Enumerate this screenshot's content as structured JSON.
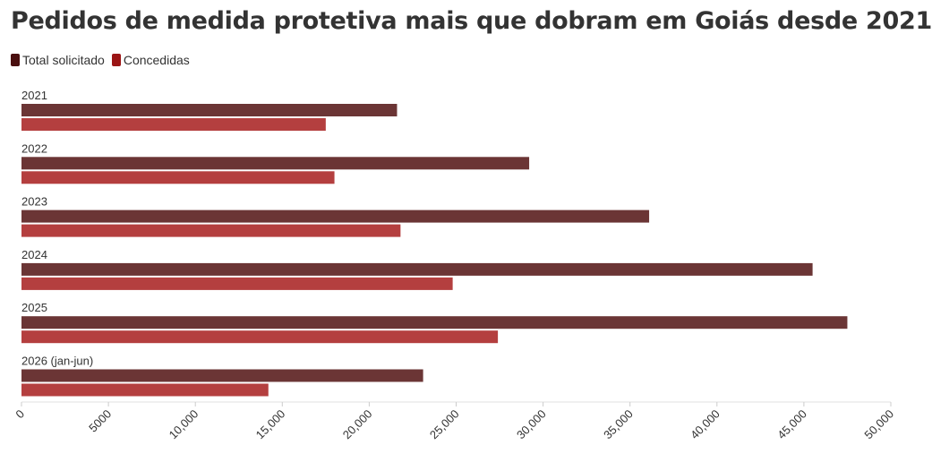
{
  "title": "Pedidos de medida protetiva mais que dobram em Goiás desde 2021",
  "legend": [
    {
      "label": "Total solicitado",
      "color": "#4a0f0f"
    },
    {
      "label": "Concedidas",
      "color": "#9b1515"
    }
  ],
  "chart_data": {
    "type": "bar",
    "orientation": "horizontal",
    "categories": [
      "2021",
      "2022",
      "2023",
      "2024",
      "2025",
      "2026 (jan-jun)"
    ],
    "series": [
      {
        "name": "Total solicitado",
        "color": "#6b3535",
        "values": [
          21600,
          29200,
          36100,
          45500,
          47500,
          23100
        ]
      },
      {
        "name": "Concedidas",
        "color": "#b43f3f",
        "values": [
          17500,
          18000,
          21800,
          24800,
          27400,
          14200
        ]
      }
    ],
    "xlim": [
      0,
      50000
    ],
    "xticks": [
      0,
      5000,
      10000,
      15000,
      20000,
      25000,
      30000,
      35000,
      40000,
      45000,
      50000
    ],
    "xtick_labels": [
      "0",
      "5000",
      "10,000",
      "15,000",
      "20,000",
      "25,000",
      "30,000",
      "35,000",
      "40,000",
      "45,000",
      "50,000"
    ],
    "grid": false,
    "legend_position": "top-left"
  }
}
